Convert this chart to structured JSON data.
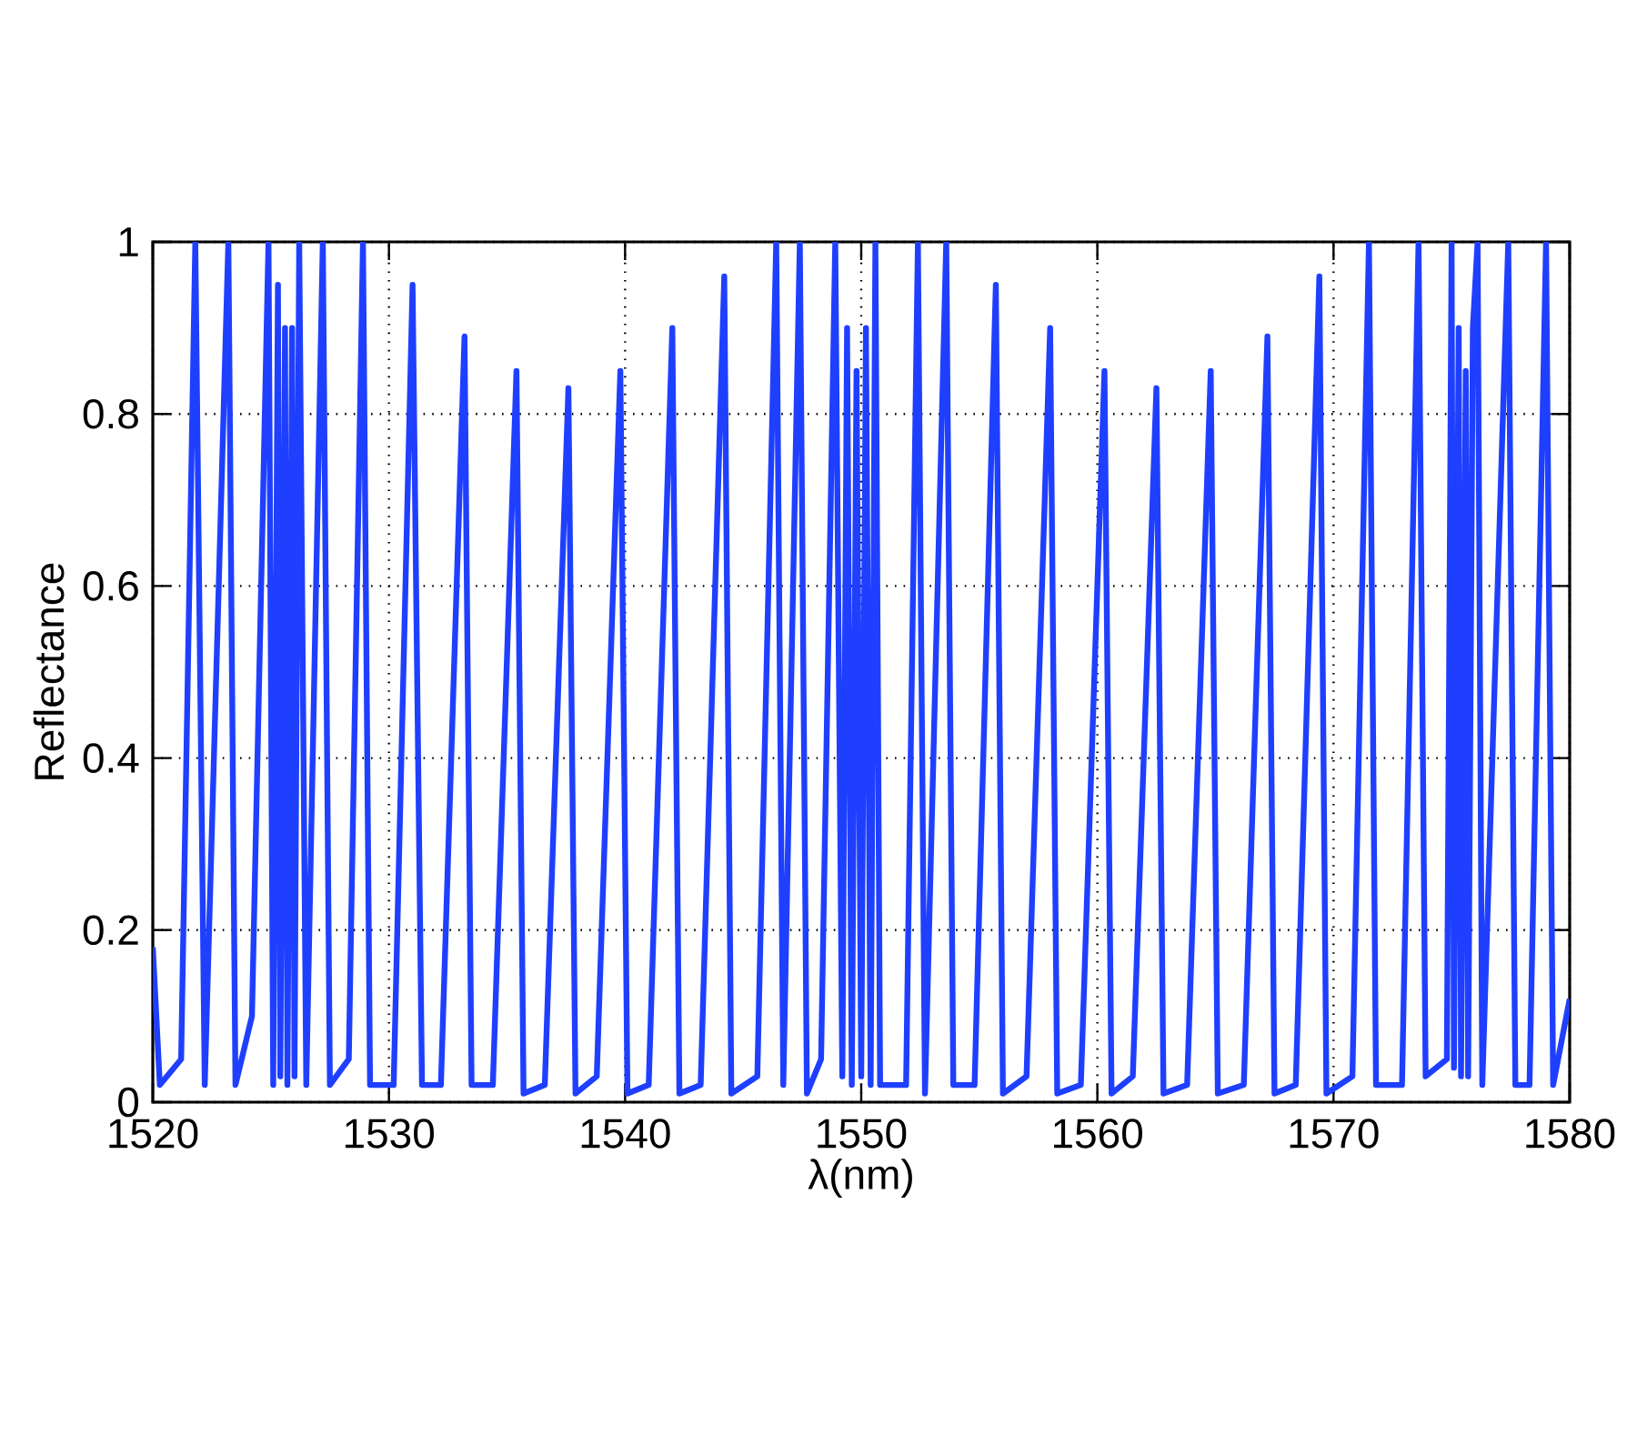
{
  "chart_data": {
    "type": "line",
    "xlabel": "λ(nm)",
    "ylabel": "Reflectance",
    "xlim": [
      1520,
      1580
    ],
    "ylim": [
      0,
      1
    ],
    "xticks": [
      1520,
      1530,
      1540,
      1550,
      1560,
      1570,
      1580
    ],
    "yticks": [
      0,
      0.2,
      0.4,
      0.6,
      0.8,
      1
    ],
    "grid": true,
    "line_style": "solid",
    "marker": "none",
    "series": [
      {
        "color": "#1f3fff",
        "x": [
          1520,
          1520.3,
          1521.2,
          1521.8,
          1522.2,
          1523.2,
          1523.5,
          1524.2,
          1524.9,
          1525.1,
          1525.3,
          1525.4,
          1525.6,
          1525.7,
          1525.9,
          1526.0,
          1526.2,
          1526.5,
          1527.2,
          1527.5,
          1528.3,
          1528.9,
          1529.2,
          1530.2,
          1531.0,
          1531.4,
          1532.2,
          1533.2,
          1533.5,
          1534.4,
          1535.4,
          1535.7,
          1536.6,
          1537.6,
          1537.9,
          1538.8,
          1539.8,
          1540.1,
          1541.0,
          1542.0,
          1542.3,
          1543.2,
          1544.2,
          1544.5,
          1545.6,
          1546.4,
          1546.7,
          1547.4,
          1547.7,
          1548.3,
          1548.9,
          1549.2,
          1549.4,
          1549.6,
          1549.8,
          1550.0,
          1550.2,
          1550.4,
          1550.6,
          1550.8,
          1551.9,
          1552.4,
          1552.7,
          1553.6,
          1553.9,
          1554.8,
          1555.7,
          1556.0,
          1557.0,
          1558.0,
          1558.3,
          1559.3,
          1560.3,
          1560.6,
          1561.5,
          1562.5,
          1562.8,
          1563.8,
          1564.8,
          1565.1,
          1566.2,
          1567.2,
          1567.5,
          1568.4,
          1569.4,
          1569.7,
          1570.8,
          1571.5,
          1571.8,
          1572.9,
          1573.6,
          1573.9,
          1574.8,
          1575.0,
          1575.1,
          1575.3,
          1575.4,
          1575.6,
          1575.7,
          1575.9,
          1576.1,
          1576.3,
          1577.4,
          1577.7,
          1578.3,
          1579.0,
          1579.3,
          1580
        ],
        "values": [
          0.18,
          0.02,
          0.05,
          1.0,
          0.02,
          1.0,
          0.02,
          0.1,
          1.0,
          0.02,
          0.95,
          0.03,
          0.9,
          0.02,
          0.9,
          0.03,
          1.0,
          0.02,
          1.0,
          0.02,
          0.05,
          1.0,
          0.02,
          0.02,
          0.95,
          0.02,
          0.02,
          0.89,
          0.02,
          0.02,
          0.85,
          0.01,
          0.02,
          0.83,
          0.01,
          0.03,
          0.85,
          0.01,
          0.02,
          0.9,
          0.01,
          0.02,
          0.96,
          0.01,
          0.03,
          1.0,
          0.02,
          1.0,
          0.01,
          0.05,
          1.0,
          0.03,
          0.9,
          0.02,
          0.85,
          0.03,
          0.9,
          0.02,
          1.0,
          0.02,
          0.02,
          1.0,
          0.01,
          1.0,
          0.02,
          0.02,
          0.95,
          0.01,
          0.03,
          0.9,
          0.01,
          0.02,
          0.85,
          0.01,
          0.03,
          0.83,
          0.01,
          0.02,
          0.85,
          0.01,
          0.02,
          0.89,
          0.01,
          0.02,
          0.96,
          0.01,
          0.03,
          1.0,
          0.02,
          0.02,
          1.0,
          0.03,
          0.05,
          1.0,
          0.04,
          0.9,
          0.03,
          0.85,
          0.03,
          0.9,
          1.0,
          0.02,
          1.0,
          0.02,
          0.02,
          1.0,
          0.02,
          0.12
        ]
      }
    ]
  }
}
